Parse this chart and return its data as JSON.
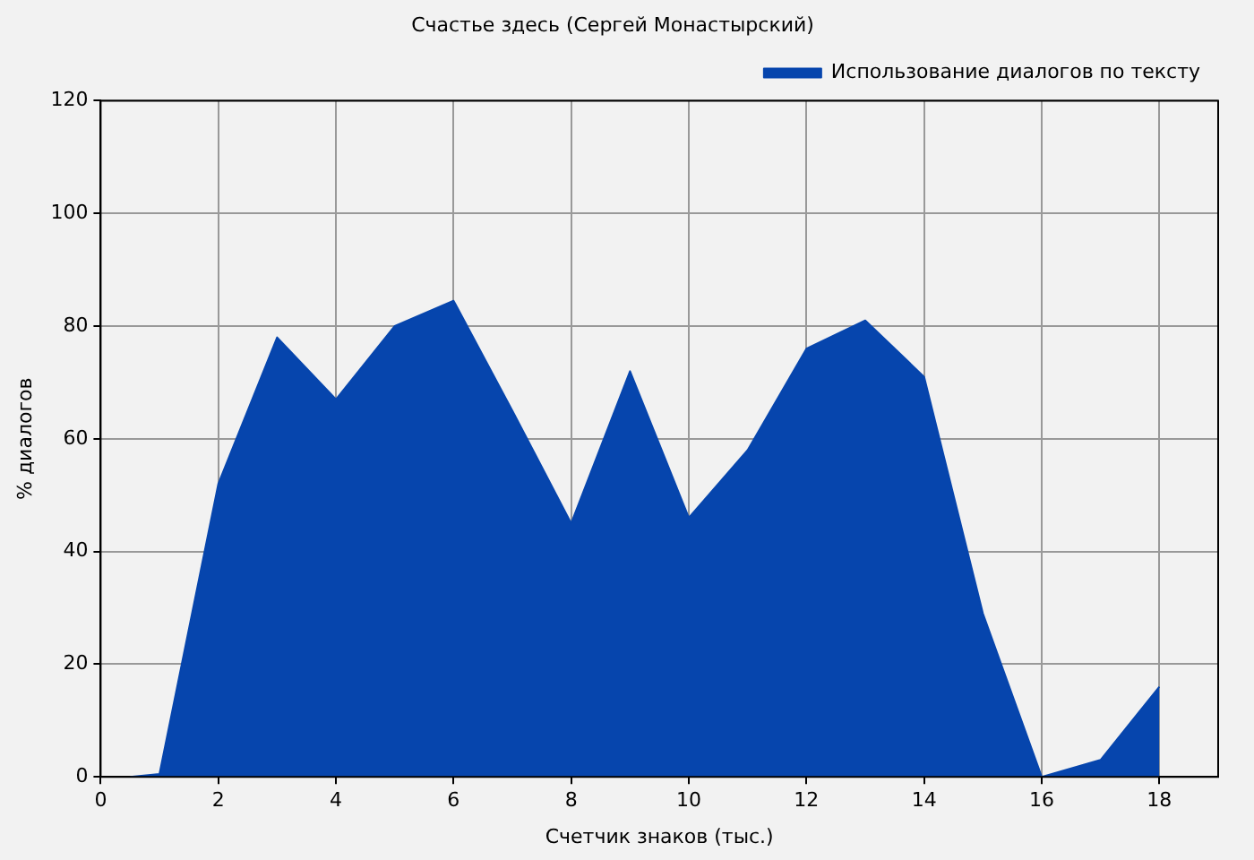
{
  "chart_data": {
    "type": "area",
    "title": "Счастье здесь (Сергей Монастырский)",
    "xlabel": "Счетчик знаков (тыс.)",
    "ylabel": "% диалогов",
    "x": [
      0.5,
      1,
      2,
      3,
      4,
      5,
      6,
      7,
      8,
      9,
      10,
      11,
      12,
      13,
      14,
      15,
      16,
      17,
      18
    ],
    "series": [
      {
        "name": "Использование диалогов по тексту",
        "color": "#0645ad",
        "values": [
          0,
          0.5,
          52,
          78,
          67,
          80,
          84.5,
          65,
          45,
          72,
          46,
          58,
          76,
          81,
          71,
          29,
          0,
          3,
          16
        ]
      }
    ],
    "xlim": [
      0,
      19
    ],
    "xticks": [
      0,
      2,
      4,
      6,
      8,
      10,
      12,
      14,
      16,
      18
    ],
    "ylim": [
      0,
      120
    ],
    "yticks": [
      0,
      20,
      40,
      60,
      80,
      100,
      120
    ],
    "grid": true,
    "legend": "top right",
    "marker": "none"
  }
}
